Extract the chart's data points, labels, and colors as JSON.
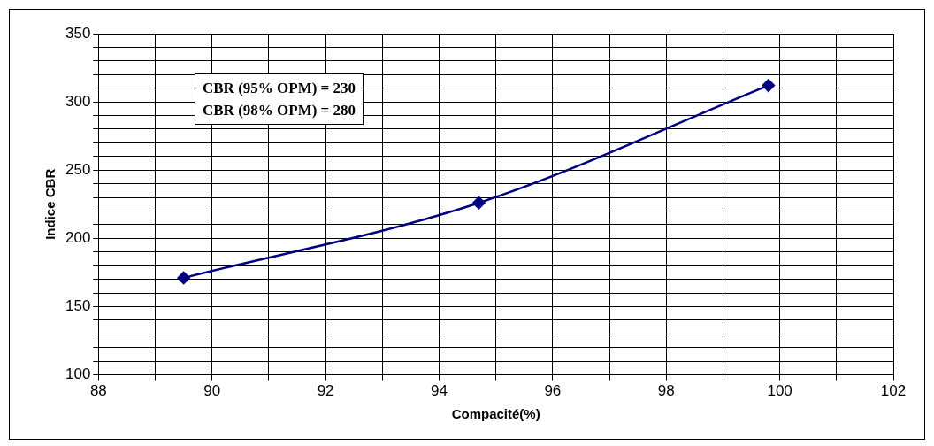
{
  "chart_data": {
    "type": "line",
    "xlabel": "Compacité(%)",
    "ylabel": "Indice CBR",
    "x": [
      89.5,
      94.7,
      99.8
    ],
    "series": [
      {
        "color": "#000080",
        "values": [
          171,
          226,
          312
        ]
      }
    ],
    "xlim": [
      88,
      102
    ],
    "xticks": [
      88,
      {
        "value": 89,
        "label": null
      },
      90,
      {
        "value": 91,
        "label": null
      },
      92,
      {
        "value": 93,
        "label": null
      },
      94,
      {
        "value": 95,
        "label": null
      },
      96,
      {
        "value": 97,
        "label": null
      },
      98,
      {
        "value": 99,
        "label": null
      },
      100,
      {
        "value": 101,
        "label": null
      },
      102
    ],
    "ylim": [
      100,
      350
    ],
    "yticks": [
      100,
      {
        "value": 110,
        "label": null
      },
      {
        "value": 120,
        "label": null
      },
      {
        "value": 130,
        "label": null
      },
      {
        "value": 140,
        "label": null
      },
      150,
      {
        "value": 160,
        "label": null
      },
      {
        "value": 170,
        "label": null
      },
      {
        "value": 180,
        "label": null
      },
      {
        "value": 190,
        "label": null
      },
      200,
      {
        "value": 210,
        "label": null
      },
      {
        "value": 220,
        "label": null
      },
      {
        "value": 230,
        "label": null
      },
      {
        "value": 240,
        "label": null
      },
      250,
      {
        "value": 260,
        "label": null
      },
      {
        "value": 270,
        "label": null
      },
      {
        "value": 280,
        "label": null
      },
      {
        "value": 290,
        "label": null
      },
      300,
      {
        "value": 310,
        "label": null
      },
      {
        "value": 320,
        "label": null
      },
      {
        "value": 330,
        "label": null
      },
      {
        "value": 340,
        "label": null
      },
      350
    ],
    "grid": true,
    "legend": false,
    "marker": "diamond",
    "line_style": "solid",
    "annotations": [
      "CBR (95% OPM) = 230",
      "CBR (98% OPM) = 280"
    ]
  }
}
